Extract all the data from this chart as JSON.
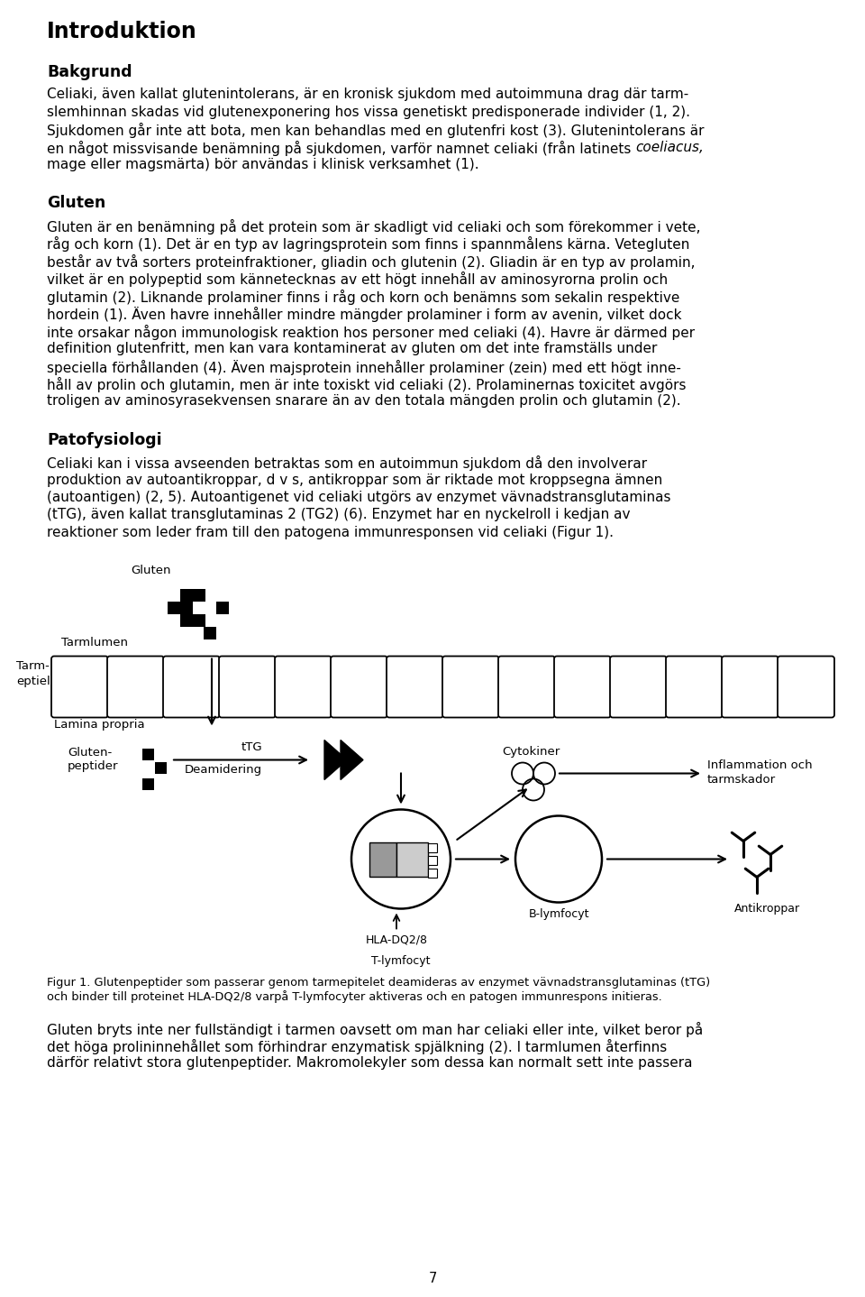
{
  "title": "Introduktion",
  "background_color": "#ffffff",
  "text_color": "#000000",
  "page_number": "7",
  "bakgrund_lines": [
    "Celiaki, även kallat glutenintolerans, är en kronisk sjukdom med autoimmuna drag där tarm-",
    "slemhinnan skadas vid glutenexponering hos vissa genetiskt predisponerade individer (1, 2).",
    "Sjukdomen går inte att bota, men kan behandlas med en glutenfri kost (3). Glutenintolerans är",
    "en något missvisande benämning på sjukdomen, varför namnet celiaki (från latinets ",
    "coeliacus,",
    "mage eller magsmärta) bör användas i klinisk verksamhet (1)."
  ],
  "gluten_lines": [
    "Gluten är en benämning på det protein som är skadligt vid celiaki och som förekommer i vete,",
    "råg och korn (1). Det är en typ av lagringsprotein som finns i spannmålens kärna. Vetegluten",
    "består av två sorters proteinfraktioner, gliadin och glutenin (2). Gliadin är en typ av prolamin,",
    "vilket är en polypeptid som kännetecknas av ett högt innehåll av aminosyrorna prolin och",
    "glutamin (2). Liknande prolaminer finns i råg och korn och benämns som sekalin respektive",
    "hordein (1). Även havre innehåller mindre mängder prolaminer i form av avenin, vilket dock",
    "inte orsakar någon immunologisk reaktion hos personer med celiaki (4). Havre är därmed per",
    "definition glutenfritt, men kan vara kontaminerat av gluten om det inte framställs under",
    "speciella förhållanden (4). Även majsprotein innehåller prolaminer (zein) med ett högt inne-",
    "håll av prolin och glutamin, men är inte toxiskt vid celiaki (2). Prolaminernas toxicitet avgörs",
    "troligen av aminosyrasekvensen snarare än av den totala mängden prolin och glutamin (2)."
  ],
  "pato_lines": [
    "Celiaki kan i vissa avseenden betraktas som en autoimmun sjukdom då den involverar",
    "produktion av autoantikroppar, d v s, antikroppar som är riktade mot kroppsegna ämnen",
    "(autoantigen) (2, 5). Autoantigenet vid celiaki utgörs av enzymet vävnadstransglutaminas",
    "(tTG), även kallat transglutaminas 2 (TG2) (6). Enzymet har en nyckelroll i kedjan av",
    "reaktioner som leder fram till den patogena immunresponsen vid celiaki (Figur 1)."
  ],
  "figure_caption_line1": "Figur 1. Glutenpeptider som passerar genom tarmepitelet deamideras av enzymet vävnadstransglutaminas (tTG)",
  "figure_caption_line2": "och binder till proteinet HLA-DQ2/8 varpå T-lymfocyter aktiveras och en patogen immunrespons initieras.",
  "last_lines": [
    "Gluten bryts inte ner fullständigt i tarmen oavsett om man har celiaki eller inte, vilket beror på",
    "det höga prolininnehållet som förhindrar enzymatisk spjälkning (2). I tarmlumen återfinns",
    "därför relativt stora glutenpeptider. Makromolekyler som dessa kan normalt sett inte passera"
  ]
}
